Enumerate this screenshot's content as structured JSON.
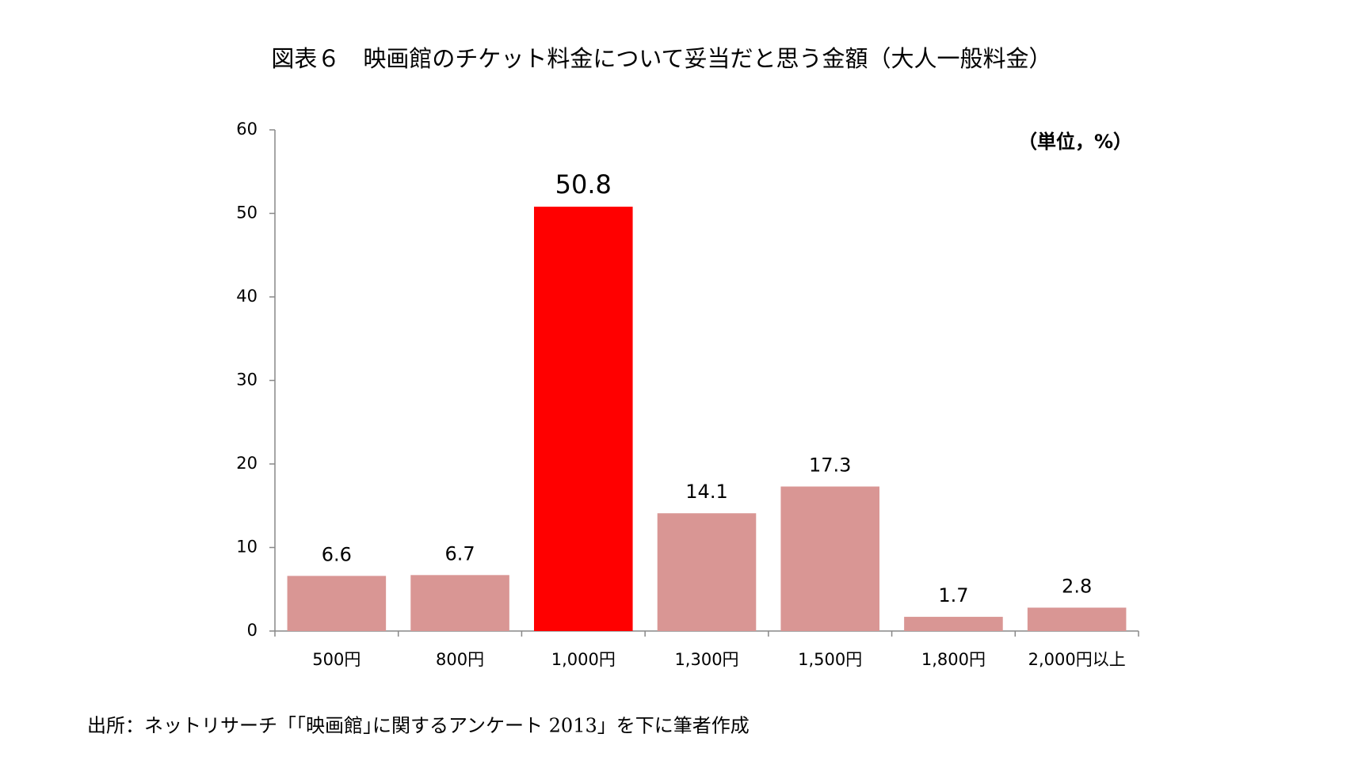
{
  "chart_data": {
    "type": "bar",
    "title": "図表６　映画館のチケット料金について妥当だと思う金額（大人一般料金）",
    "unit_note": "（単位，%）",
    "source": "出所：ネットリサーチ「｢映画館｣に関するアンケート 2013」を下に筆者作成",
    "categories": [
      "500円",
      "800円",
      "1,000円",
      "1,300円",
      "1,500円",
      "1,800円",
      "2,000円以上"
    ],
    "values": [
      6.6,
      6.7,
      50.8,
      14.1,
      17.3,
      1.7,
      2.8
    ],
    "value_labels": [
      "6.6",
      "6.7",
      "50.8",
      "14.1",
      "17.3",
      "1.7",
      "2.8"
    ],
    "colors": [
      "#d99694",
      "#d99694",
      "#ff0000",
      "#d99694",
      "#d99694",
      "#d99694",
      "#d99694"
    ],
    "ylim": [
      0,
      60
    ],
    "yticks": [
      0,
      10,
      20,
      30,
      40,
      50,
      60
    ],
    "grid": false
  }
}
